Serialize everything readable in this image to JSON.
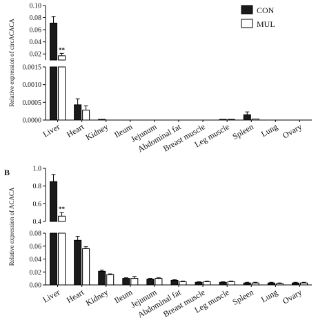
{
  "chart_data": [
    {
      "type": "bar",
      "panel_label": "",
      "ylabel": "Relative expression of circACACA",
      "categories": [
        "Liver",
        "Heart",
        "Kidney",
        "Ileum",
        "Jejunum",
        "Abdominal fat",
        "Breast muscle",
        "Leg muscle",
        "Spleen",
        "Lung",
        "Ovary"
      ],
      "series": [
        {
          "name": "CON",
          "color": "#1a1a1a",
          "values": [
            0.071,
            0.00043,
            5e-06,
            0.0,
            0.0,
            0.0,
            0.0,
            1.5e-05,
            0.00015,
            0.0,
            0.0
          ],
          "errors": [
            0.011,
            0.00017,
            0.0,
            0.0,
            0.0,
            0.0,
            0.0,
            0.0,
            8e-05,
            0.0,
            0.0
          ]
        },
        {
          "name": "MUL",
          "color": "#ffffff",
          "values": [
            0.017,
            0.00028,
            0.0,
            0.0,
            0.0,
            0.0,
            0.0,
            1e-05,
            3e-05,
            0.0,
            0.0
          ],
          "errors": [
            0.004,
            0.00012,
            0.0,
            0.0,
            0.0,
            0.0,
            0.0,
            0.0,
            0.0,
            0.0,
            0.0
          ]
        }
      ],
      "significance": [
        {
          "category": "Liver",
          "text": "**"
        }
      ],
      "axis_break": true,
      "y_lower_segment": {
        "range": [
          0,
          0.0015
        ],
        "ticks": [
          "0.0000",
          "0.0005",
          "0.0010",
          "0.0015"
        ]
      },
      "y_upper_segment": {
        "range": [
          0.01,
          0.1
        ],
        "ticks": [
          "0.02",
          "0.04",
          "0.06",
          "0.08",
          "0.10"
        ]
      },
      "legend": {
        "placement": "top-right",
        "entries": [
          "CON",
          "MUL"
        ]
      }
    },
    {
      "type": "bar",
      "panel_label": "B",
      "ylabel": "Relative expression of ACACA",
      "categories": [
        "Liver",
        "Heart",
        "Kidney",
        "Ileum",
        "Jejunum",
        "Abdominal fat",
        "Breast muscle",
        "Leg muscle",
        "Spleen",
        "Lung",
        "Ovary"
      ],
      "series": [
        {
          "name": "CON",
          "color": "#1a1a1a",
          "values": [
            0.85,
            0.069,
            0.021,
            0.01,
            0.009,
            0.007,
            0.004,
            0.004,
            0.003,
            0.003,
            0.003
          ],
          "errors": [
            0.08,
            0.006,
            0.002,
            0.001,
            0.001,
            0.001,
            0.001,
            0.001,
            0.001,
            0.001,
            0.001
          ]
        },
        {
          "name": "MUL",
          "color": "#ffffff",
          "values": [
            0.46,
            0.056,
            0.016,
            0.01,
            0.01,
            0.005,
            0.005,
            0.005,
            0.003,
            0.002,
            0.003
          ],
          "errors": [
            0.04,
            0.003,
            0.001,
            0.003,
            0.001,
            0.001,
            0.001,
            0.001,
            0.001,
            0.001,
            0.001
          ]
        }
      ],
      "significance": [
        {
          "category": "Liver",
          "text": "**"
        }
      ],
      "axis_break": true,
      "y_lower_segment": {
        "range": [
          0,
          0.08
        ],
        "ticks": [
          "0.00",
          "0.02",
          "0.04",
          "0.06",
          "0.08"
        ]
      },
      "y_upper_segment": {
        "range": [
          0.4,
          1.0
        ],
        "ticks": [
          "0.4",
          "0.6",
          "0.8",
          "1.0"
        ]
      },
      "legend": null
    }
  ]
}
